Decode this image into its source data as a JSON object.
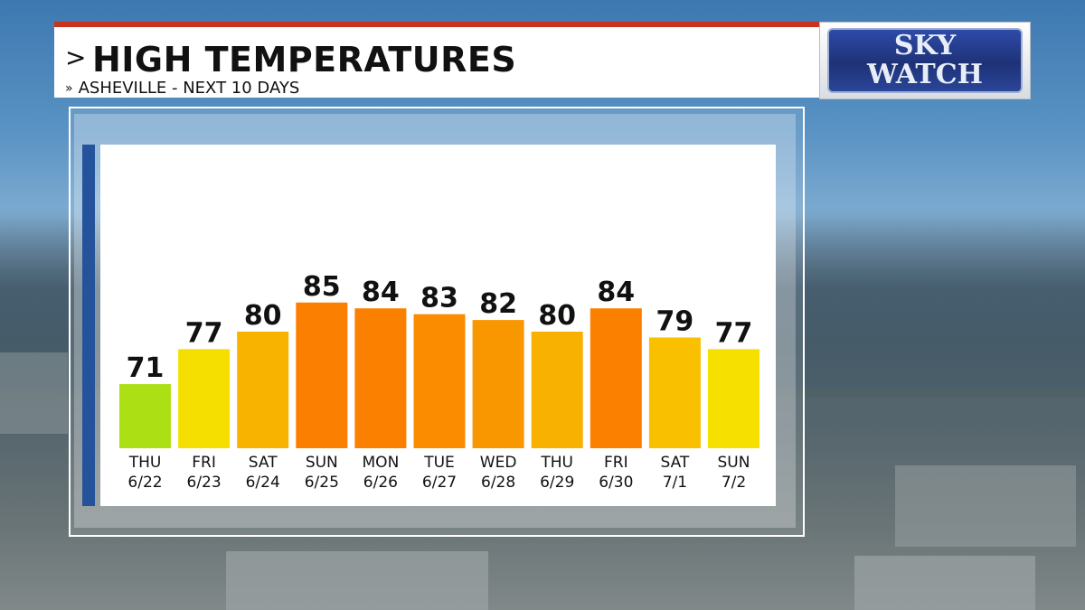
{
  "header": {
    "title": "HIGH TEMPERATURES",
    "subtitle": "ASHEVILLE - NEXT 10 DAYS"
  },
  "logo": {
    "line1": "SKY",
    "line2": "WATCH"
  },
  "colors": {
    "header_stripe": "#c8331e",
    "accent_bar": "#24539b"
  },
  "chart_data": {
    "type": "bar",
    "title": "HIGH TEMPERATURES",
    "subtitle": "ASHEVILLE - NEXT 10 DAYS",
    "categories": [
      {
        "day": "THU",
        "date": "6/22"
      },
      {
        "day": "FRI",
        "date": "6/23"
      },
      {
        "day": "SAT",
        "date": "6/24"
      },
      {
        "day": "SUN",
        "date": "6/25"
      },
      {
        "day": "MON",
        "date": "6/26"
      },
      {
        "day": "TUE",
        "date": "6/27"
      },
      {
        "day": "WED",
        "date": "6/28"
      },
      {
        "day": "THU",
        "date": "6/29"
      },
      {
        "day": "FRI",
        "date": "6/30"
      },
      {
        "day": "SAT",
        "date": "7/1"
      },
      {
        "day": "SUN",
        "date": "7/2"
      }
    ],
    "values": [
      71,
      77,
      80,
      85,
      84,
      83,
      82,
      80,
      84,
      79,
      77
    ],
    "bar_colors": [
      "#acdf14",
      "#f5df00",
      "#f8b200",
      "#fb7f00",
      "#fb8000",
      "#fb8c00",
      "#f99700",
      "#f8b100",
      "#fb8000",
      "#f9c000",
      "#f5e000"
    ],
    "data_labels": true,
    "grid": false,
    "legend": "none"
  }
}
